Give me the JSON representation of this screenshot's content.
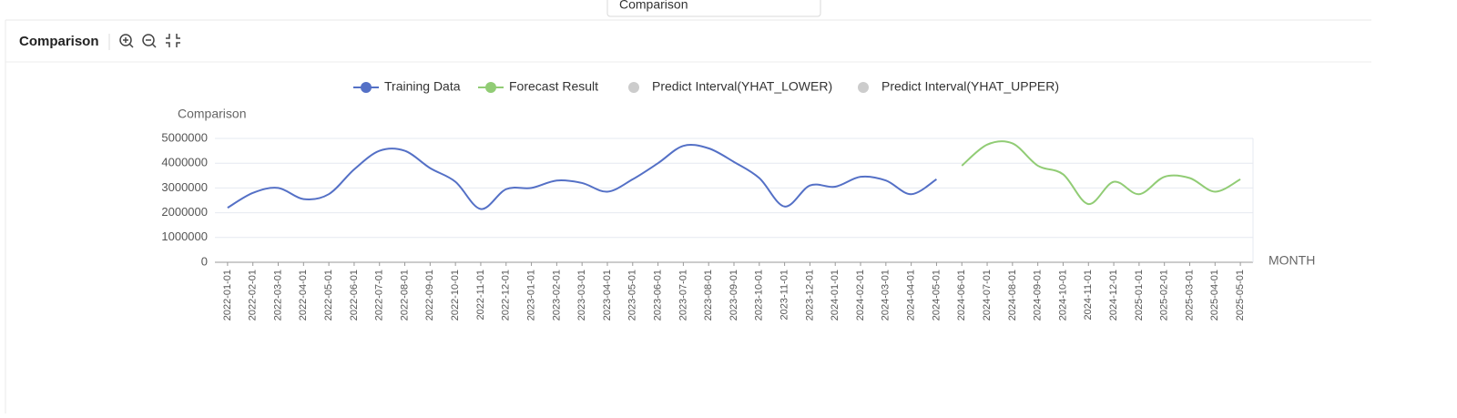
{
  "header": {
    "dropdown": "Comparison",
    "title": "Comparison"
  },
  "chart_data": {
    "type": "line",
    "y_label": "Comparison",
    "x_label": "MONTH",
    "categories": [
      "2022-01-01",
      "2022-02-01",
      "2022-03-01",
      "2022-04-01",
      "2022-05-01",
      "2022-06-01",
      "2022-07-01",
      "2022-08-01",
      "2022-09-01",
      "2022-10-01",
      "2022-11-01",
      "2022-12-01",
      "2023-01-01",
      "2023-02-01",
      "2023-03-01",
      "2023-04-01",
      "2023-05-01",
      "2023-06-01",
      "2023-07-01",
      "2023-08-01",
      "2023-09-01",
      "2023-10-01",
      "2023-11-01",
      "2023-12-01",
      "2024-01-01",
      "2024-02-01",
      "2024-03-01",
      "2024-04-01",
      "2024-05-01",
      "2024-06-01",
      "2024-07-01",
      "2024-08-01",
      "2024-09-01",
      "2024-10-01",
      "2024-11-01",
      "2024-12-01",
      "2025-01-01",
      "2025-02-01",
      "2025-03-01",
      "2025-04-01",
      "2025-05-01"
    ],
    "series": [
      {
        "name": "Training Data",
        "color": "#5470c6",
        "values": [
          2200000,
          2800000,
          3000000,
          2550000,
          2750000,
          3750000,
          4500000,
          4500000,
          3800000,
          3250000,
          2150000,
          2950000,
          3000000,
          3300000,
          3200000,
          2850000,
          3350000,
          4000000,
          4700000,
          4600000,
          4050000,
          3400000,
          2250000,
          3100000,
          3050000,
          3450000,
          3300000,
          2750000,
          3350000,
          null,
          null,
          null,
          null,
          null,
          null,
          null,
          null,
          null,
          null,
          null,
          null
        ]
      },
      {
        "name": "Forecast Result",
        "color": "#91cc75",
        "values": [
          null,
          null,
          null,
          null,
          null,
          null,
          null,
          null,
          null,
          null,
          null,
          null,
          null,
          null,
          null,
          null,
          null,
          null,
          null,
          null,
          null,
          null,
          null,
          null,
          null,
          null,
          null,
          null,
          null,
          3900000,
          4750000,
          4800000,
          3900000,
          3550000,
          2350000,
          3250000,
          2750000,
          3450000,
          3400000,
          2850000,
          3350000
        ]
      },
      {
        "name": "Predict Interval(YHAT_LOWER)",
        "color": "#cccccc",
        "values": [
          null,
          null,
          null,
          null,
          null,
          null,
          null,
          null,
          null,
          null,
          null,
          null,
          null,
          null,
          null,
          null,
          null,
          null,
          null,
          null,
          null,
          null,
          null,
          null,
          null,
          null,
          null,
          null,
          null,
          null,
          null,
          null,
          null,
          null,
          null,
          null,
          null,
          null,
          null,
          null,
          null
        ]
      },
      {
        "name": "Predict Interval(YHAT_UPPER)",
        "color": "#cccccc",
        "values": [
          null,
          null,
          null,
          null,
          null,
          null,
          null,
          null,
          null,
          null,
          null,
          null,
          null,
          null,
          null,
          null,
          null,
          null,
          null,
          null,
          null,
          null,
          null,
          null,
          null,
          null,
          null,
          null,
          null,
          null,
          null,
          null,
          null,
          null,
          null,
          null,
          null,
          null,
          null,
          null,
          null
        ]
      }
    ],
    "ylim": [
      0,
      5000000
    ],
    "yticks": [
      0,
      1000000,
      2000000,
      3000000,
      4000000,
      5000000
    ],
    "grid": true
  }
}
